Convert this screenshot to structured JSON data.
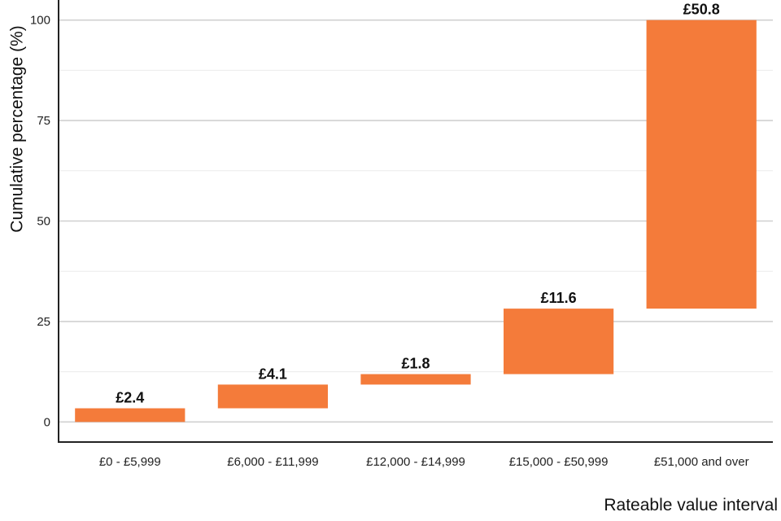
{
  "chart_data": {
    "type": "bar",
    "subtype": "waterfall",
    "title": "",
    "xlabel": "Rateable value interval",
    "ylabel": "Cumulative percentage (%)",
    "ylim": [
      -5,
      105
    ],
    "yticks": [
      "0",
      "25",
      "50",
      "75",
      "100"
    ],
    "ytick_values": [
      0,
      25,
      50,
      75,
      100
    ],
    "grid": true,
    "bar_color": "#f47b3a",
    "categories": [
      "£0 - £5,999",
      "£6,000 - £11,999",
      "£12,000 - £14,999",
      "£15,000 - £50,999",
      "£51,000 and over"
    ],
    "bars": [
      {
        "category": "£0 - £5,999",
        "start": 0,
        "end": 3.4,
        "label": "£2.4"
      },
      {
        "category": "£6,000 - £11,999",
        "start": 3.4,
        "end": 9.3,
        "label": "£4.1"
      },
      {
        "category": "£12,000 - £14,999",
        "start": 9.3,
        "end": 11.9,
        "label": "£1.8"
      },
      {
        "category": "£15,000 - £50,999",
        "start": 11.9,
        "end": 28.2,
        "label": "£11.6"
      },
      {
        "category": "£51,000 and over",
        "start": 28.2,
        "end": 100,
        "label": "£50.8"
      }
    ]
  }
}
